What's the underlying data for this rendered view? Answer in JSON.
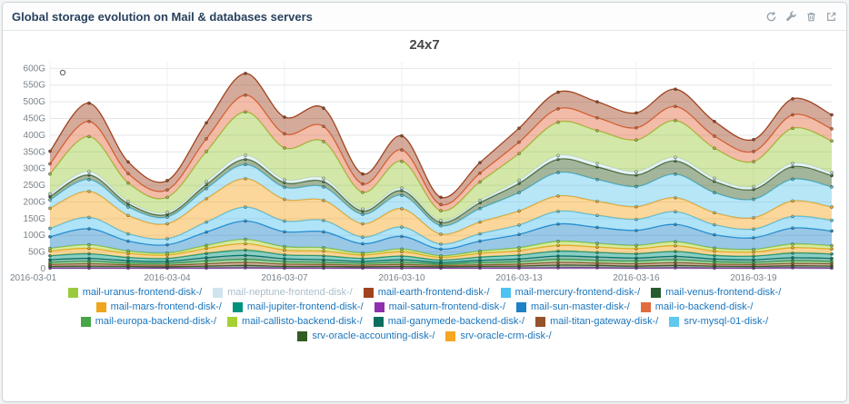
{
  "widget": {
    "title": "Global storage evolution on Mail & databases servers",
    "toolbar": {
      "icons": [
        "refresh-icon",
        "wrench-icon",
        "trash-icon",
        "external-link-icon"
      ]
    }
  },
  "chart_data": {
    "type": "area",
    "stacked": true,
    "title": "24x7",
    "legend_position": "bottom",
    "grid": true,
    "yunit": "G",
    "ylim": [
      0,
      620
    ],
    "ytick_step": 50,
    "x": [
      "2016-03-01",
      "2016-03-02",
      "2016-03-03",
      "2016-03-04",
      "2016-03-05",
      "2016-03-06",
      "2016-03-07",
      "2016-03-08",
      "2016-03-09",
      "2016-03-10",
      "2016-03-11",
      "2016-03-12",
      "2016-03-13",
      "2016-03-14",
      "2016-03-15",
      "2016-03-16",
      "2016-03-17",
      "2016-03-18",
      "2016-03-19",
      "2016-03-20",
      "2016-03-21"
    ],
    "xtick_indices": [
      0,
      3,
      6,
      9,
      12,
      15,
      18
    ],
    "series": [
      {
        "name": "mail-uranus-frontend-disk-/",
        "color": "#9bca3e",
        "values": [
          60,
          105,
          55,
          45,
          90,
          130,
          95,
          110,
          50,
          80,
          30,
          55,
          80,
          100,
          98,
          95,
          110,
          90,
          75,
          105,
          95
        ]
      },
      {
        "name": "mail-neptune-frontend-disk-/",
        "color": "#cfe4ee",
        "muted": true,
        "values": [
          8,
          10,
          7,
          6,
          9,
          12,
          9,
          10,
          6,
          8,
          5,
          7,
          9,
          11,
          11,
          10,
          11,
          9,
          8,
          10,
          9
        ]
      },
      {
        "name": "mail-earth-frontend-disk-/",
        "color": "#a0431f",
        "values": [
          38,
          55,
          35,
          28,
          48,
          65,
          50,
          55,
          30,
          42,
          22,
          32,
          42,
          50,
          48,
          45,
          52,
          44,
          36,
          48,
          42
        ]
      },
      {
        "name": "mail-mercury-frontend-disk-/",
        "color": "#4ec2f0",
        "values": [
          25,
          34,
          22,
          18,
          30,
          42,
          32,
          34,
          20,
          28,
          15,
          22,
          28,
          38,
          36,
          33,
          38,
          30,
          26,
          35,
          32
        ]
      },
      {
        "name": "mail-venus-frontend-disk-/",
        "color": "#285c2e",
        "values": [
          5,
          6,
          5,
          4,
          6,
          7,
          5,
          5,
          4,
          5,
          4,
          5,
          6,
          8,
          7,
          6,
          7,
          6,
          5,
          6,
          6
        ]
      },
      {
        "name": "mail-mars-frontend-disk-/",
        "color": "#efa51c",
        "values": [
          14,
          16,
          12,
          10,
          15,
          19,
          14,
          14,
          10,
          13,
          8,
          11,
          13,
          17,
          16,
          15,
          17,
          13,
          12,
          16,
          15
        ]
      },
      {
        "name": "mail-jupiter-frontend-disk-/",
        "color": "#00927c",
        "values": [
          12,
          14,
          10,
          9,
          13,
          16,
          12,
          12,
          9,
          11,
          7,
          10,
          12,
          15,
          14,
          13,
          15,
          11,
          11,
          14,
          13
        ]
      },
      {
        "name": "mail-saturn-frontend-disk-/",
        "color": "#8e2fad",
        "values": [
          2,
          2,
          2,
          2,
          2,
          3,
          2,
          2,
          2,
          2,
          2,
          2,
          2,
          3,
          3,
          2,
          3,
          2,
          2,
          3,
          2
        ]
      },
      {
        "name": "mail-sun-master-disk-/",
        "color": "#1d82c8",
        "values": [
          35,
          48,
          30,
          25,
          40,
          55,
          45,
          48,
          28,
          38,
          20,
          30,
          40,
          52,
          48,
          45,
          52,
          40,
          35,
          48,
          44
        ]
      },
      {
        "name": "mail-io-backend-disk-/",
        "color": "#e26b3e",
        "values": [
          30,
          45,
          28,
          22,
          38,
          50,
          42,
          45,
          25,
          34,
          18,
          26,
          34,
          40,
          38,
          36,
          42,
          36,
          30,
          40,
          36
        ]
      },
      {
        "name": "mail-europa-backend-disk-/",
        "color": "#46a546",
        "values": [
          6,
          7,
          5,
          5,
          8,
          9,
          7,
          6,
          5,
          6,
          4,
          6,
          7,
          9,
          8,
          8,
          9,
          7,
          6,
          8,
          7
        ]
      },
      {
        "name": "mail-callisto-backend-disk-/",
        "color": "#a6d133",
        "values": [
          8,
          11,
          7,
          6,
          9,
          13,
          10,
          10,
          6,
          8,
          5,
          7,
          9,
          12,
          11,
          10,
          12,
          9,
          8,
          11,
          10
        ]
      },
      {
        "name": "mail-ganymede-backend-disk-/",
        "color": "#0b6e5f",
        "values": [
          8,
          9,
          7,
          6,
          10,
          12,
          9,
          8,
          6,
          8,
          5,
          7,
          8,
          10,
          10,
          9,
          10,
          8,
          8,
          9,
          9
        ]
      },
      {
        "name": "mail-titan-gateway-disk-/",
        "color": "#96522b",
        "values": [
          6,
          7,
          5,
          5,
          7,
          9,
          7,
          6,
          5,
          6,
          4,
          5,
          6,
          8,
          7,
          7,
          8,
          6,
          6,
          7,
          7
        ]
      },
      {
        "name": "srv-mysql-01-disk-/",
        "color": "#5fc8ee",
        "values": [
          25,
          35,
          25,
          20,
          30,
          42,
          36,
          40,
          28,
          40,
          25,
          40,
          55,
          70,
          65,
          60,
          70,
          60,
          55,
          65,
          60
        ]
      },
      {
        "name": "srv-oracle-accounting-disk-/",
        "color": "#335c22",
        "values": [
          10,
          14,
          10,
          8,
          12,
          16,
          14,
          16,
          10,
          14,
          10,
          18,
          28,
          40,
          38,
          35,
          40,
          34,
          30,
          38,
          34
        ]
      },
      {
        "name": "srv-oracle-crm-disk-/",
        "color": "#f6a722",
        "values": [
          60,
          78,
          55,
          45,
          70,
          85,
          65,
          60,
          40,
          55,
          30,
          35,
          42,
          46,
          42,
          38,
          42,
          36,
          34,
          46,
          40
        ]
      }
    ],
    "stack_order": [
      "mail-saturn-frontend-disk-/",
      "mail-venus-frontend-disk-/",
      "mail-titan-gateway-disk-/",
      "mail-europa-backend-disk-/",
      "mail-ganymede-backend-disk-/",
      "mail-jupiter-frontend-disk-/",
      "mail-mars-frontend-disk-/",
      "mail-callisto-backend-disk-/",
      "mail-sun-master-disk-/",
      "mail-mercury-frontend-disk-/",
      "srv-oracle-crm-disk-/",
      "srv-mysql-01-disk-/",
      "srv-oracle-accounting-disk-/",
      "mail-neptune-frontend-disk-/",
      "mail-uranus-frontend-disk-/",
      "mail-io-backend-disk-/",
      "mail-earth-frontend-disk-/"
    ],
    "legend_rows": [
      [
        0,
        1,
        2,
        3,
        4
      ],
      [
        5,
        6,
        7,
        8,
        9
      ],
      [
        10,
        11,
        12,
        13,
        14
      ],
      [
        15,
        16
      ]
    ]
  }
}
